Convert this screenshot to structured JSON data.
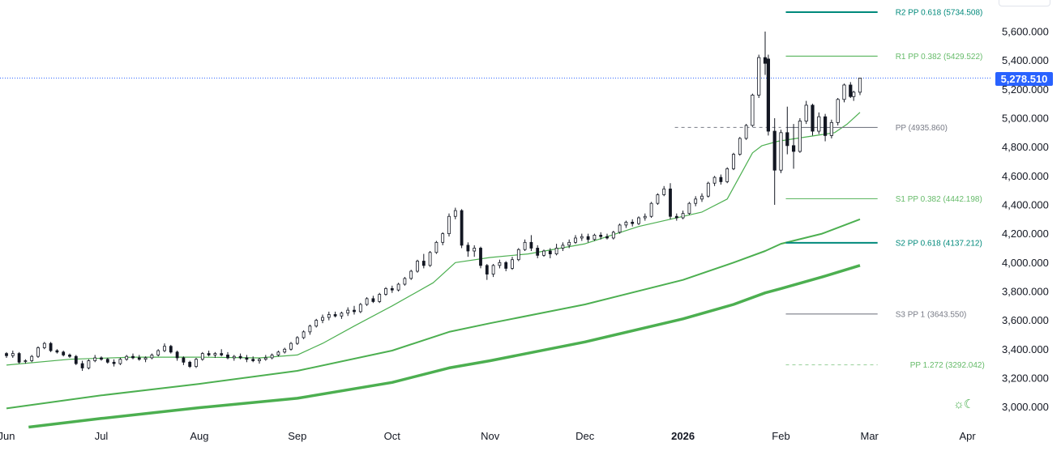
{
  "chart_data": {
    "type": "candlestick",
    "title": "",
    "xlabel": "",
    "ylabel": "",
    "ylim": [
      2860,
      5860
    ],
    "y_ticks": [
      {
        "value": 5600,
        "label": "5,600.000"
      },
      {
        "value": 5400,
        "label": "5,400.000"
      },
      {
        "value": 5200,
        "label": "5,200.000"
      },
      {
        "value": 5000,
        "label": "5,000.000"
      },
      {
        "value": 4800,
        "label": "4,800.000"
      },
      {
        "value": 4600,
        "label": "4,600.000"
      },
      {
        "value": 4400,
        "label": "4,400.000"
      },
      {
        "value": 4200,
        "label": "4,200.000"
      },
      {
        "value": 4000,
        "label": "4,000.000"
      },
      {
        "value": 3800,
        "label": "3,800.000"
      },
      {
        "value": 3600,
        "label": "3,600.000"
      },
      {
        "value": 3400,
        "label": "3,400.000"
      },
      {
        "value": 3200,
        "label": "3,200.000"
      },
      {
        "value": 3000,
        "label": "3,000.000"
      }
    ],
    "x_ticks": [
      {
        "day": 0,
        "label": "Jun",
        "bold": false
      },
      {
        "day": 30,
        "label": "Jul",
        "bold": false
      },
      {
        "day": 61,
        "label": "Aug",
        "bold": false
      },
      {
        "day": 92,
        "label": "Sep",
        "bold": false
      },
      {
        "day": 122,
        "label": "Oct",
        "bold": false
      },
      {
        "day": 153,
        "label": "Nov",
        "bold": false
      },
      {
        "day": 183,
        "label": "Dec",
        "bold": false
      },
      {
        "day": 214,
        "label": "2026",
        "bold": true
      },
      {
        "day": 245,
        "label": "Feb",
        "bold": false
      },
      {
        "day": 273,
        "label": "Mar",
        "bold": false
      },
      {
        "day": 304,
        "label": "Apr",
        "bold": false
      }
    ],
    "last_price": 5278.51,
    "last_price_label": "5,278.510",
    "pivot_levels": [
      {
        "label": "R2 PP 0.618 (5734.508)",
        "value": 5734.508,
        "color": "#00897b",
        "style": "solid",
        "from_day": 245,
        "to_day": 273
      },
      {
        "label": "R1 PP 0.382 (5429.522)",
        "value": 5429.522,
        "color": "#66bb6a",
        "style": "solid",
        "from_day": 245,
        "to_day": 273
      },
      {
        "label": "PP (4935.860)",
        "value": 4935.86,
        "color": "#787b86",
        "style": "solid",
        "from_day": 245,
        "to_day": 273
      },
      {
        "label": "S1 PP 0.382 (4442.198)",
        "value": 4442.198,
        "color": "#66bb6a",
        "style": "solid",
        "from_day": 245,
        "to_day": 273
      },
      {
        "label": "S2 PP 0.618 (4137.212)",
        "value": 4137.212,
        "color": "#00897b",
        "style": "solid",
        "from_day": 245,
        "to_day": 273
      },
      {
        "label": "S3 PP 1 (3643.550)",
        "value": 3643.55,
        "color": "#787b86",
        "style": "solid",
        "from_day": 245,
        "to_day": 273
      },
      {
        "label": "PP 1.272 (3292.042)",
        "value": 3292.042,
        "color": "#a5d6a7",
        "style": "dashed",
        "from_day": 245,
        "to_day": 273
      }
    ],
    "previous_pp": {
      "value": 4935.86,
      "from_day": 214,
      "to_day": 245
    },
    "moving_averages": [
      {
        "name": "MA short",
        "color": "#4caf50",
        "width": 1.2,
        "points": [
          [
            0,
            3290
          ],
          [
            20,
            3330
          ],
          [
            40,
            3345
          ],
          [
            61,
            3345
          ],
          [
            80,
            3340
          ],
          [
            92,
            3360
          ],
          [
            100,
            3440
          ],
          [
            110,
            3560
          ],
          [
            122,
            3700
          ],
          [
            135,
            3860
          ],
          [
            142,
            4000
          ],
          [
            153,
            4035
          ],
          [
            165,
            4060
          ],
          [
            183,
            4130
          ],
          [
            200,
            4250
          ],
          [
            210,
            4300
          ],
          [
            220,
            4350
          ],
          [
            228,
            4440
          ],
          [
            232,
            4600
          ],
          [
            236,
            4760
          ],
          [
            239,
            4810
          ],
          [
            244,
            4840
          ],
          [
            250,
            4860
          ],
          [
            256,
            4880
          ],
          [
            262,
            4900
          ],
          [
            266,
            4960
          ],
          [
            270,
            5040
          ]
        ]
      },
      {
        "name": "MA mid",
        "color": "#4caf50",
        "width": 2,
        "points": [
          [
            0,
            2990
          ],
          [
            30,
            3080
          ],
          [
            61,
            3160
          ],
          [
            92,
            3250
          ],
          [
            122,
            3390
          ],
          [
            140,
            3520
          ],
          [
            153,
            3580
          ],
          [
            183,
            3710
          ],
          [
            214,
            3880
          ],
          [
            230,
            4000
          ],
          [
            240,
            4080
          ],
          [
            245,
            4130
          ],
          [
            258,
            4200
          ],
          [
            270,
            4300
          ]
        ]
      },
      {
        "name": "MA long",
        "color": "#4caf50",
        "width": 3.5,
        "points": [
          [
            7,
            2860
          ],
          [
            30,
            2920
          ],
          [
            61,
            2995
          ],
          [
            92,
            3060
          ],
          [
            122,
            3170
          ],
          [
            140,
            3270
          ],
          [
            153,
            3320
          ],
          [
            183,
            3450
          ],
          [
            214,
            3610
          ],
          [
            230,
            3710
          ],
          [
            240,
            3790
          ],
          [
            245,
            3820
          ],
          [
            258,
            3900
          ],
          [
            270,
            3980
          ]
        ]
      }
    ],
    "candles": [
      [
        0,
        3370,
        3380,
        3340,
        3355
      ],
      [
        2,
        3355,
        3390,
        3340,
        3370
      ],
      [
        4,
        3370,
        3380,
        3300,
        3310
      ],
      [
        6,
        3315,
        3330,
        3300,
        3320
      ],
      [
        8,
        3320,
        3360,
        3310,
        3350
      ],
      [
        10,
        3350,
        3420,
        3340,
        3410
      ],
      [
        12,
        3410,
        3450,
        3400,
        3440
      ],
      [
        14,
        3440,
        3450,
        3380,
        3390
      ],
      [
        16,
        3390,
        3400,
        3370,
        3380
      ],
      [
        18,
        3380,
        3390,
        3350,
        3360
      ],
      [
        20,
        3360,
        3370,
        3340,
        3350
      ],
      [
        22,
        3350,
        3360,
        3290,
        3300
      ],
      [
        24,
        3300,
        3320,
        3250,
        3270
      ],
      [
        26,
        3270,
        3330,
        3260,
        3320
      ],
      [
        28,
        3320,
        3360,
        3310,
        3340
      ],
      [
        30,
        3340,
        3350,
        3320,
        3330
      ],
      [
        32,
        3330,
        3340,
        3300,
        3310
      ],
      [
        34,
        3310,
        3330,
        3280,
        3300
      ],
      [
        36,
        3300,
        3340,
        3290,
        3330
      ],
      [
        38,
        3330,
        3360,
        3320,
        3350
      ],
      [
        40,
        3350,
        3370,
        3330,
        3340
      ],
      [
        42,
        3340,
        3360,
        3320,
        3330
      ],
      [
        44,
        3330,
        3350,
        3310,
        3340
      ],
      [
        46,
        3340,
        3370,
        3330,
        3360
      ],
      [
        48,
        3360,
        3400,
        3350,
        3390
      ],
      [
        50,
        3390,
        3440,
        3380,
        3420
      ],
      [
        52,
        3420,
        3430,
        3370,
        3380
      ],
      [
        54,
        3380,
        3390,
        3320,
        3340
      ],
      [
        56,
        3340,
        3350,
        3290,
        3310
      ],
      [
        58,
        3310,
        3320,
        3270,
        3280
      ],
      [
        60,
        3280,
        3340,
        3270,
        3330
      ],
      [
        62,
        3330,
        3380,
        3320,
        3370
      ],
      [
        64,
        3370,
        3390,
        3350,
        3360
      ],
      [
        66,
        3360,
        3380,
        3340,
        3370
      ],
      [
        68,
        3370,
        3400,
        3350,
        3360
      ],
      [
        70,
        3360,
        3380,
        3330,
        3340
      ],
      [
        72,
        3340,
        3360,
        3320,
        3350
      ],
      [
        74,
        3350,
        3370,
        3330,
        3340
      ],
      [
        76,
        3340,
        3360,
        3310,
        3330
      ],
      [
        78,
        3330,
        3350,
        3310,
        3320
      ],
      [
        80,
        3320,
        3340,
        3300,
        3330
      ],
      [
        82,
        3330,
        3360,
        3320,
        3340
      ],
      [
        84,
        3340,
        3370,
        3330,
        3360
      ],
      [
        86,
        3360,
        3390,
        3350,
        3380
      ],
      [
        88,
        3380,
        3410,
        3370,
        3400
      ],
      [
        90,
        3400,
        3450,
        3390,
        3440
      ],
      [
        92,
        3440,
        3490,
        3430,
        3480
      ],
      [
        94,
        3480,
        3530,
        3470,
        3520
      ],
      [
        96,
        3520,
        3570,
        3500,
        3560
      ],
      [
        98,
        3560,
        3610,
        3550,
        3600
      ],
      [
        100,
        3600,
        3640,
        3580,
        3620
      ],
      [
        102,
        3620,
        3660,
        3600,
        3640
      ],
      [
        104,
        3640,
        3660,
        3620,
        3630
      ],
      [
        106,
        3630,
        3660,
        3610,
        3650
      ],
      [
        108,
        3650,
        3690,
        3630,
        3670
      ],
      [
        110,
        3670,
        3700,
        3640,
        3660
      ],
      [
        112,
        3660,
        3720,
        3650,
        3710
      ],
      [
        114,
        3710,
        3760,
        3700,
        3750
      ],
      [
        116,
        3750,
        3770,
        3720,
        3730
      ],
      [
        118,
        3730,
        3790,
        3720,
        3780
      ],
      [
        120,
        3780,
        3830,
        3770,
        3820
      ],
      [
        122,
        3820,
        3840,
        3790,
        3810
      ],
      [
        124,
        3810,
        3860,
        3800,
        3850
      ],
      [
        126,
        3850,
        3900,
        3840,
        3890
      ],
      [
        128,
        3890,
        3950,
        3880,
        3940
      ],
      [
        130,
        3940,
        4020,
        3930,
        4010
      ],
      [
        132,
        4010,
        4060,
        3960,
        3980
      ],
      [
        134,
        3980,
        4080,
        3970,
        4070
      ],
      [
        136,
        4070,
        4150,
        4060,
        4140
      ],
      [
        138,
        4140,
        4210,
        4120,
        4200
      ],
      [
        140,
        4200,
        4340,
        4180,
        4320
      ],
      [
        142,
        4320,
        4380,
        4300,
        4360
      ],
      [
        144,
        4360,
        4370,
        4100,
        4120
      ],
      [
        146,
        4120,
        4140,
        4040,
        4080
      ],
      [
        148,
        4080,
        4120,
        4040,
        4100
      ],
      [
        150,
        4100,
        4110,
        3960,
        3980
      ],
      [
        152,
        3980,
        3990,
        3880,
        3920
      ],
      [
        154,
        3920,
        3990,
        3900,
        3980
      ],
      [
        156,
        3980,
        4020,
        3960,
        4000
      ],
      [
        158,
        4000,
        4010,
        3940,
        3960
      ],
      [
        160,
        3960,
        4040,
        3950,
        4020
      ],
      [
        162,
        4020,
        4100,
        4010,
        4090
      ],
      [
        164,
        4090,
        4160,
        4080,
        4140
      ],
      [
        166,
        4140,
        4190,
        4080,
        4100
      ],
      [
        168,
        4100,
        4120,
        4030,
        4050
      ],
      [
        170,
        4050,
        4090,
        4040,
        4080
      ],
      [
        172,
        4080,
        4100,
        4030,
        4060
      ],
      [
        174,
        4060,
        4130,
        4050,
        4100
      ],
      [
        176,
        4100,
        4140,
        4080,
        4120
      ],
      [
        178,
        4120,
        4160,
        4100,
        4140
      ],
      [
        180,
        4140,
        4190,
        4130,
        4170
      ],
      [
        182,
        4170,
        4200,
        4150,
        4180
      ],
      [
        184,
        4180,
        4200,
        4140,
        4160
      ],
      [
        186,
        4160,
        4200,
        4150,
        4190
      ],
      [
        188,
        4190,
        4210,
        4160,
        4180
      ],
      [
        190,
        4180,
        4200,
        4160,
        4170
      ],
      [
        192,
        4170,
        4220,
        4160,
        4210
      ],
      [
        194,
        4210,
        4270,
        4200,
        4260
      ],
      [
        196,
        4260,
        4290,
        4240,
        4280
      ],
      [
        198,
        4280,
        4300,
        4250,
        4270
      ],
      [
        200,
        4270,
        4320,
        4260,
        4310
      ],
      [
        202,
        4310,
        4340,
        4290,
        4320
      ],
      [
        204,
        4320,
        4420,
        4310,
        4410
      ],
      [
        206,
        4410,
        4480,
        4400,
        4470
      ],
      [
        208,
        4470,
        4530,
        4460,
        4510
      ],
      [
        210,
        4510,
        4550,
        4300,
        4320
      ],
      [
        212,
        4320,
        4340,
        4290,
        4310
      ],
      [
        214,
        4310,
        4360,
        4300,
        4340
      ],
      [
        216,
        4340,
        4420,
        4330,
        4410
      ],
      [
        218,
        4410,
        4460,
        4390,
        4440
      ],
      [
        220,
        4440,
        4480,
        4420,
        4460
      ],
      [
        222,
        4460,
        4560,
        4450,
        4550
      ],
      [
        224,
        4550,
        4600,
        4530,
        4590
      ],
      [
        226,
        4590,
        4610,
        4540,
        4560
      ],
      [
        228,
        4560,
        4660,
        4550,
        4650
      ],
      [
        230,
        4650,
        4760,
        4640,
        4750
      ],
      [
        232,
        4750,
        4870,
        4740,
        4860
      ],
      [
        234,
        4860,
        4960,
        4850,
        4950
      ],
      [
        236,
        4950,
        5170,
        4940,
        5160
      ],
      [
        238,
        5160,
        5440,
        5140,
        5420
      ],
      [
        240,
        5420,
        5600,
        5300,
        5380
      ],
      [
        241,
        5410,
        5440,
        4880,
        4910
      ],
      [
        243,
        4910,
        5000,
        4400,
        4640
      ],
      [
        245,
        4640,
        4920,
        4620,
        4900
      ],
      [
        247,
        4900,
        5080,
        4750,
        4810
      ],
      [
        249,
        4810,
        4960,
        4650,
        4770
      ],
      [
        251,
        4770,
        5000,
        4760,
        4980
      ],
      [
        253,
        4980,
        5120,
        4960,
        5090
      ],
      [
        255,
        5090,
        5100,
        4880,
        4910
      ],
      [
        257,
        4910,
        5040,
        4890,
        5010
      ],
      [
        259,
        5010,
        5030,
        4840,
        4880
      ],
      [
        261,
        4880,
        4990,
        4860,
        4970
      ],
      [
        263,
        4970,
        5140,
        4950,
        5130
      ],
      [
        265,
        5130,
        5240,
        5110,
        5230
      ],
      [
        267,
        5230,
        5250,
        5140,
        5150
      ],
      [
        268,
        5150,
        5190,
        5120,
        5180
      ],
      [
        270,
        5180,
        5280,
        5160,
        5278
      ]
    ]
  }
}
